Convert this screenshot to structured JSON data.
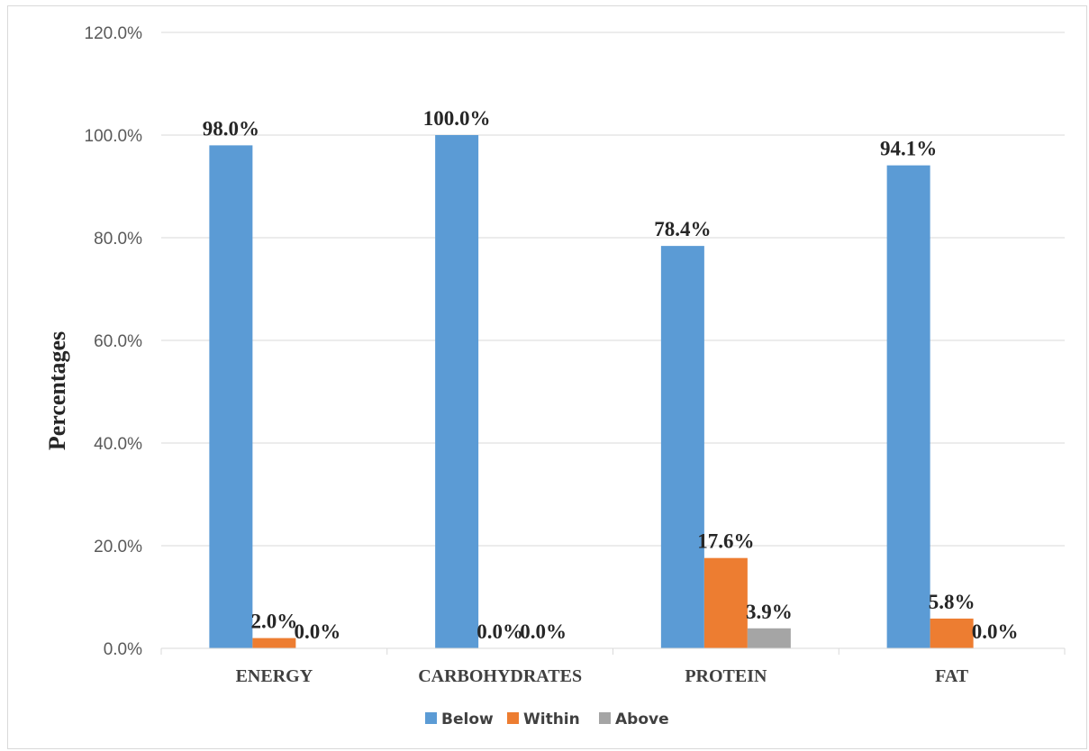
{
  "chart_data": {
    "type": "bar",
    "categories": [
      "ENERGY",
      "CARBOHYDRATES",
      "PROTEIN",
      "FAT"
    ],
    "series": [
      {
        "name": "Below",
        "color": "#5b9bd5",
        "values": [
          98.0,
          100.0,
          78.4,
          94.1
        ],
        "labels": [
          "98.0%",
          "100.0%",
          "78.4%",
          "94.1%"
        ]
      },
      {
        "name": "Within",
        "color": "#ed7d31",
        "values": [
          2.0,
          0.0,
          17.6,
          5.8
        ],
        "labels": [
          "2.0%",
          "0.0%",
          "17.6%",
          "5.8%"
        ]
      },
      {
        "name": "Above",
        "color": "#a5a5a5",
        "values": [
          0.0,
          0.0,
          3.9,
          0.0
        ],
        "labels": [
          "0.0%",
          "0.0%",
          "3.9%",
          "0.0%"
        ]
      }
    ],
    "ylabel": "Percentages",
    "xlabel": "",
    "ylim": [
      0,
      120
    ],
    "yticks": [
      "0.0%",
      "20.0%",
      "40.0%",
      "60.0%",
      "80.0%",
      "100.0%",
      "120.0%"
    ],
    "grid": true,
    "legend": "bottom"
  }
}
